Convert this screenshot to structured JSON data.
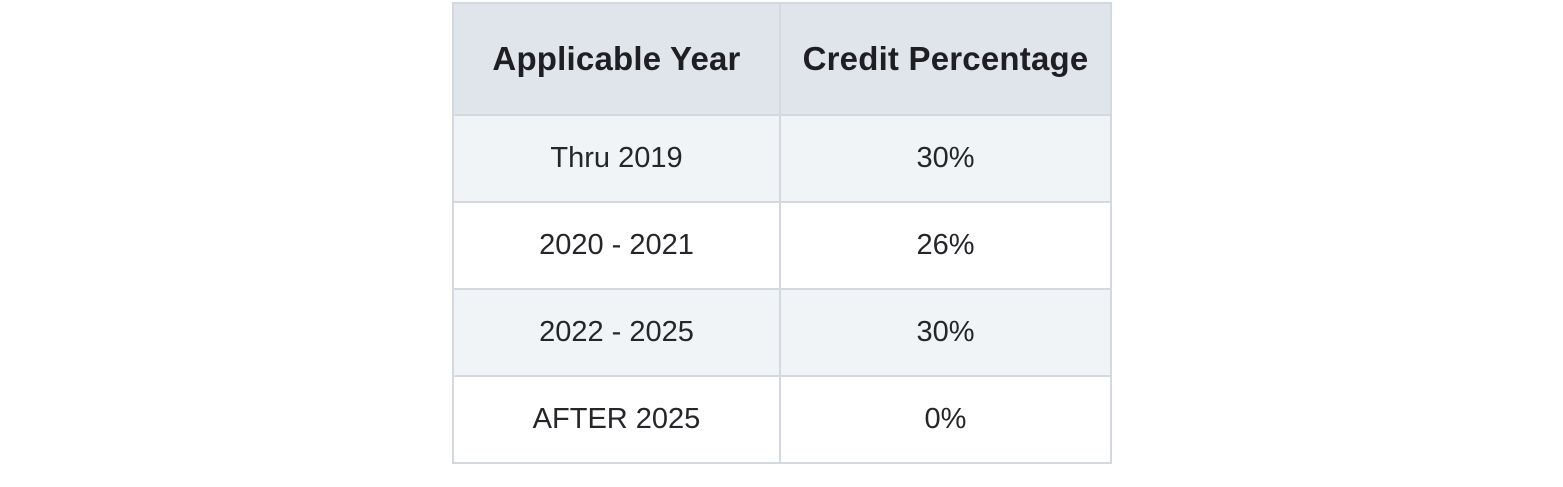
{
  "table": {
    "headers": [
      "Applicable Year",
      "Credit Percentage"
    ],
    "rows": [
      [
        "Thru 2019",
        "30%"
      ],
      [
        "2020 - 2021",
        "26%"
      ],
      [
        "2022 - 2025",
        "30%"
      ],
      [
        "AFTER 2025",
        "0%"
      ]
    ]
  },
  "colors": {
    "header_background": "#dfe5ea",
    "striped_row_background": "#f0f4f7",
    "plain_row_background": "#ffffff",
    "border": "#d3d9df",
    "text": "#222226"
  }
}
